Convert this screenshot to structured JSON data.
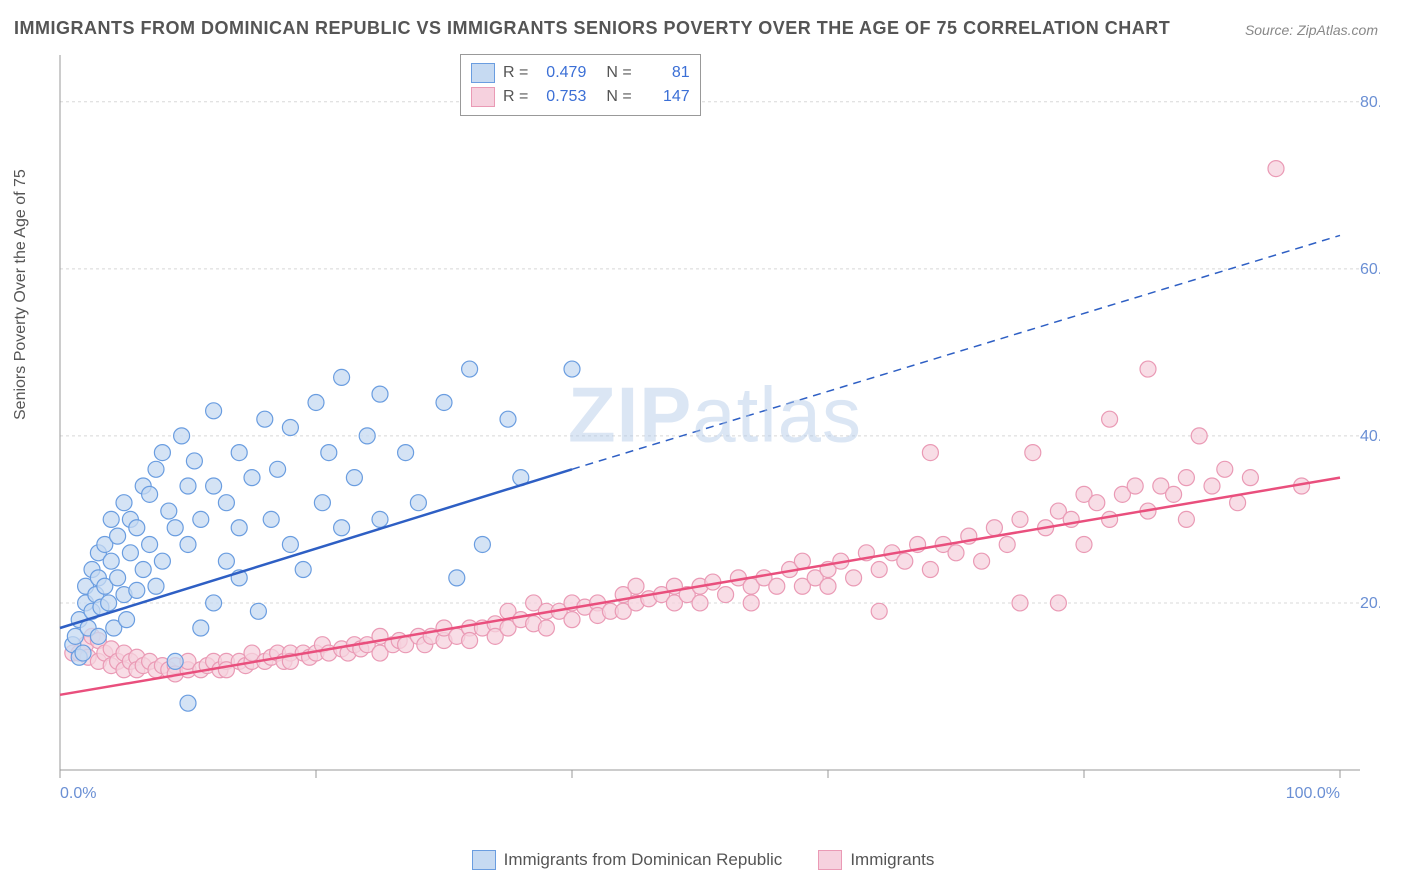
{
  "title": "IMMIGRANTS FROM DOMINICAN REPUBLIC VS IMMIGRANTS SENIORS POVERTY OVER THE AGE OF 75 CORRELATION CHART",
  "source": "Source: ZipAtlas.com",
  "watermark_zip": "ZIP",
  "watermark_atlas": "atlas",
  "y_axis_label": "Seniors Poverty Over the Age of 75",
  "chart": {
    "type": "scatter",
    "xlim": [
      0,
      100
    ],
    "ylim": [
      0,
      85
    ],
    "x_ticks": [
      0,
      100
    ],
    "x_tick_labels": [
      "0.0%",
      "100.0%"
    ],
    "y_ticks": [
      20,
      40,
      60,
      80
    ],
    "y_tick_labels": [
      "20.0%",
      "40.0%",
      "60.0%",
      "80.0%"
    ],
    "x_minor_tick_step": 20,
    "grid_color": "#d8d8d8",
    "axis_color": "#999999",
    "tick_label_color": "#6a8fd4",
    "background_color": "#ffffff",
    "marker_radius": 8,
    "marker_stroke_width": 1.2,
    "line_width": 2.5,
    "series": [
      {
        "name": "Immigrants from Dominican Republic",
        "fill_color": "#c6daf2",
        "stroke_color": "#6a9de0",
        "line_color": "#2e5fc4",
        "R": "0.479",
        "N": "81",
        "trend_solid": {
          "x1": 0,
          "y1": 17,
          "x2": 40,
          "y2": 36
        },
        "trend_dashed": {
          "x1": 40,
          "y1": 36,
          "x2": 100,
          "y2": 64
        },
        "points": [
          [
            1,
            15
          ],
          [
            1.2,
            16
          ],
          [
            1.5,
            13.5
          ],
          [
            1.5,
            18
          ],
          [
            1.8,
            14
          ],
          [
            2,
            20
          ],
          [
            2,
            22
          ],
          [
            2.2,
            17
          ],
          [
            2.5,
            19
          ],
          [
            2.5,
            24
          ],
          [
            2.8,
            21
          ],
          [
            3,
            16
          ],
          [
            3,
            23
          ],
          [
            3,
            26
          ],
          [
            3.2,
            19.5
          ],
          [
            3.5,
            22
          ],
          [
            3.5,
            27
          ],
          [
            3.8,
            20
          ],
          [
            4,
            25
          ],
          [
            4,
            30
          ],
          [
            4.2,
            17
          ],
          [
            4.5,
            28
          ],
          [
            4.5,
            23
          ],
          [
            5,
            21
          ],
          [
            5,
            32
          ],
          [
            5.2,
            18
          ],
          [
            5.5,
            26
          ],
          [
            5.5,
            30
          ],
          [
            6,
            21.5
          ],
          [
            6,
            29
          ],
          [
            6.5,
            24
          ],
          [
            6.5,
            34
          ],
          [
            7,
            27
          ],
          [
            7,
            33
          ],
          [
            7.5,
            22
          ],
          [
            7.5,
            36
          ],
          [
            8,
            38
          ],
          [
            8,
            25
          ],
          [
            8.5,
            31
          ],
          [
            9,
            13
          ],
          [
            9,
            29
          ],
          [
            9.5,
            40
          ],
          [
            10,
            34
          ],
          [
            10,
            27
          ],
          [
            10,
            8
          ],
          [
            10.5,
            37
          ],
          [
            11,
            30
          ],
          [
            11,
            17
          ],
          [
            12,
            34
          ],
          [
            12,
            20
          ],
          [
            12,
            43
          ],
          [
            13,
            32
          ],
          [
            13,
            25
          ],
          [
            14,
            38
          ],
          [
            14,
            29
          ],
          [
            14,
            23
          ],
          [
            15,
            35
          ],
          [
            15.5,
            19
          ],
          [
            16,
            42
          ],
          [
            16.5,
            30
          ],
          [
            17,
            36
          ],
          [
            18,
            27
          ],
          [
            18,
            41
          ],
          [
            19,
            24
          ],
          [
            20,
            44
          ],
          [
            20.5,
            32
          ],
          [
            21,
            38
          ],
          [
            22,
            29
          ],
          [
            22,
            47
          ],
          [
            23,
            35
          ],
          [
            24,
            40
          ],
          [
            25,
            30
          ],
          [
            25,
            45
          ],
          [
            27,
            38
          ],
          [
            28,
            32
          ],
          [
            30,
            44
          ],
          [
            31,
            23
          ],
          [
            32,
            48
          ],
          [
            33,
            27
          ],
          [
            35,
            42
          ],
          [
            36,
            35
          ],
          [
            40,
            48
          ]
        ]
      },
      {
        "name": "Immigrants",
        "fill_color": "#f6d1de",
        "stroke_color": "#ea9ab5",
        "line_color": "#e94f7d",
        "R": "0.753",
        "N": "147",
        "trend_solid": {
          "x1": 0,
          "y1": 9,
          "x2": 100,
          "y2": 35
        },
        "trend_dashed": null,
        "points": [
          [
            1,
            14
          ],
          [
            1.5,
            14
          ],
          [
            2,
            15
          ],
          [
            2.2,
            13.5
          ],
          [
            2.5,
            16
          ],
          [
            3,
            15.5
          ],
          [
            3,
            13
          ],
          [
            3.5,
            14
          ],
          [
            4,
            14.5
          ],
          [
            4,
            12.5
          ],
          [
            4.5,
            13
          ],
          [
            5,
            14
          ],
          [
            5,
            12
          ],
          [
            5.5,
            13
          ],
          [
            6,
            13.5
          ],
          [
            6,
            12
          ],
          [
            6.5,
            12.5
          ],
          [
            7,
            13
          ],
          [
            7.5,
            12
          ],
          [
            8,
            12.5
          ],
          [
            8.5,
            12
          ],
          [
            9,
            12.5
          ],
          [
            9,
            11.5
          ],
          [
            10,
            12
          ],
          [
            10,
            13
          ],
          [
            11,
            12
          ],
          [
            11.5,
            12.5
          ],
          [
            12,
            13
          ],
          [
            12.5,
            12
          ],
          [
            13,
            13
          ],
          [
            13,
            12
          ],
          [
            14,
            13
          ],
          [
            14.5,
            12.5
          ],
          [
            15,
            13
          ],
          [
            15,
            14
          ],
          [
            16,
            13
          ],
          [
            16.5,
            13.5
          ],
          [
            17,
            14
          ],
          [
            17.5,
            13
          ],
          [
            18,
            14
          ],
          [
            18,
            13
          ],
          [
            19,
            14
          ],
          [
            19.5,
            13.5
          ],
          [
            20,
            14
          ],
          [
            20.5,
            15
          ],
          [
            21,
            14
          ],
          [
            22,
            14.5
          ],
          [
            22.5,
            14
          ],
          [
            23,
            15
          ],
          [
            23.5,
            14.5
          ],
          [
            24,
            15
          ],
          [
            25,
            14
          ],
          [
            25,
            16
          ],
          [
            26,
            15
          ],
          [
            26.5,
            15.5
          ],
          [
            27,
            15
          ],
          [
            28,
            16
          ],
          [
            28.5,
            15
          ],
          [
            29,
            16
          ],
          [
            30,
            15.5
          ],
          [
            30,
            17
          ],
          [
            31,
            16
          ],
          [
            32,
            17
          ],
          [
            32,
            15.5
          ],
          [
            33,
            17
          ],
          [
            34,
            17.5
          ],
          [
            34,
            16
          ],
          [
            35,
            17
          ],
          [
            35,
            19
          ],
          [
            36,
            18
          ],
          [
            37,
            17.5
          ],
          [
            37,
            20
          ],
          [
            38,
            19
          ],
          [
            38,
            17
          ],
          [
            39,
            19
          ],
          [
            40,
            20
          ],
          [
            40,
            18
          ],
          [
            41,
            19.5
          ],
          [
            42,
            20
          ],
          [
            42,
            18.5
          ],
          [
            43,
            19
          ],
          [
            44,
            21
          ],
          [
            44,
            19
          ],
          [
            45,
            20
          ],
          [
            45,
            22
          ],
          [
            46,
            20.5
          ],
          [
            47,
            21
          ],
          [
            48,
            20
          ],
          [
            48,
            22
          ],
          [
            49,
            21
          ],
          [
            50,
            22
          ],
          [
            50,
            20
          ],
          [
            51,
            22.5
          ],
          [
            52,
            21
          ],
          [
            53,
            23
          ],
          [
            54,
            22
          ],
          [
            54,
            20
          ],
          [
            55,
            23
          ],
          [
            56,
            22
          ],
          [
            57,
            24
          ],
          [
            58,
            22
          ],
          [
            58,
            25
          ],
          [
            59,
            23
          ],
          [
            60,
            24
          ],
          [
            60,
            22
          ],
          [
            61,
            25
          ],
          [
            62,
            23
          ],
          [
            63,
            26
          ],
          [
            64,
            24
          ],
          [
            64,
            19
          ],
          [
            65,
            26
          ],
          [
            66,
            25
          ],
          [
            67,
            27
          ],
          [
            68,
            24
          ],
          [
            68,
            38
          ],
          [
            69,
            27
          ],
          [
            70,
            26
          ],
          [
            71,
            28
          ],
          [
            72,
            25
          ],
          [
            73,
            29
          ],
          [
            74,
            27
          ],
          [
            75,
            30
          ],
          [
            75,
            20
          ],
          [
            76,
            38
          ],
          [
            77,
            29
          ],
          [
            78,
            31
          ],
          [
            78,
            20
          ],
          [
            79,
            30
          ],
          [
            80,
            33
          ],
          [
            80,
            27
          ],
          [
            81,
            32
          ],
          [
            82,
            30
          ],
          [
            82,
            42
          ],
          [
            83,
            33
          ],
          [
            84,
            34
          ],
          [
            85,
            31
          ],
          [
            85,
            48
          ],
          [
            86,
            34
          ],
          [
            87,
            33
          ],
          [
            88,
            35
          ],
          [
            88,
            30
          ],
          [
            89,
            40
          ],
          [
            90,
            34
          ],
          [
            91,
            36
          ],
          [
            92,
            32
          ],
          [
            93,
            35
          ],
          [
            95,
            72
          ],
          [
            97,
            34
          ]
        ]
      }
    ]
  },
  "legend_top": {
    "r_label": "R =",
    "n_label": "N ="
  },
  "legend_bottom_labels": [
    "Immigrants from Dominican Republic",
    "Immigrants"
  ]
}
